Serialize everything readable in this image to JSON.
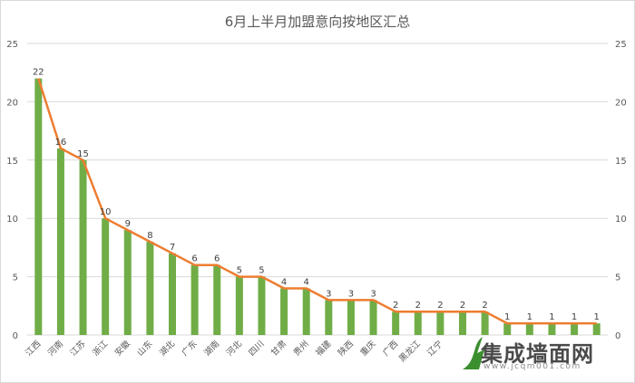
{
  "chart_data": {
    "type": "bar",
    "title": "6月上半月加盟意向按地区汇总",
    "categories": [
      "江西",
      "河南",
      "江苏",
      "浙江",
      "安徽",
      "山东",
      "湖北",
      "广东",
      "湖南",
      "河北",
      "四川",
      "甘肃",
      "贵州",
      "福建",
      "陕西",
      "重庆",
      "广西",
      "黑龙江",
      "辽宁",
      "",
      "",
      "",
      " ",
      " ",
      " ",
      " "
    ],
    "values": [
      22,
      16,
      15,
      10,
      9,
      8,
      7,
      6,
      6,
      5,
      5,
      4,
      4,
      3,
      3,
      3,
      2,
      2,
      2,
      2,
      2,
      1,
      1,
      1,
      1,
      1
    ],
    "overlay_line": true,
    "ylim": [
      0,
      25
    ],
    "yticks": [
      0,
      5,
      10,
      15,
      20,
      25
    ],
    "secondary_y_axis": true,
    "grid": true,
    "bar_color": "#70ad47",
    "line_color": "#ed7d31"
  },
  "watermark": {
    "text": "集成墙面网",
    "url": "www.jcqm001.com"
  }
}
